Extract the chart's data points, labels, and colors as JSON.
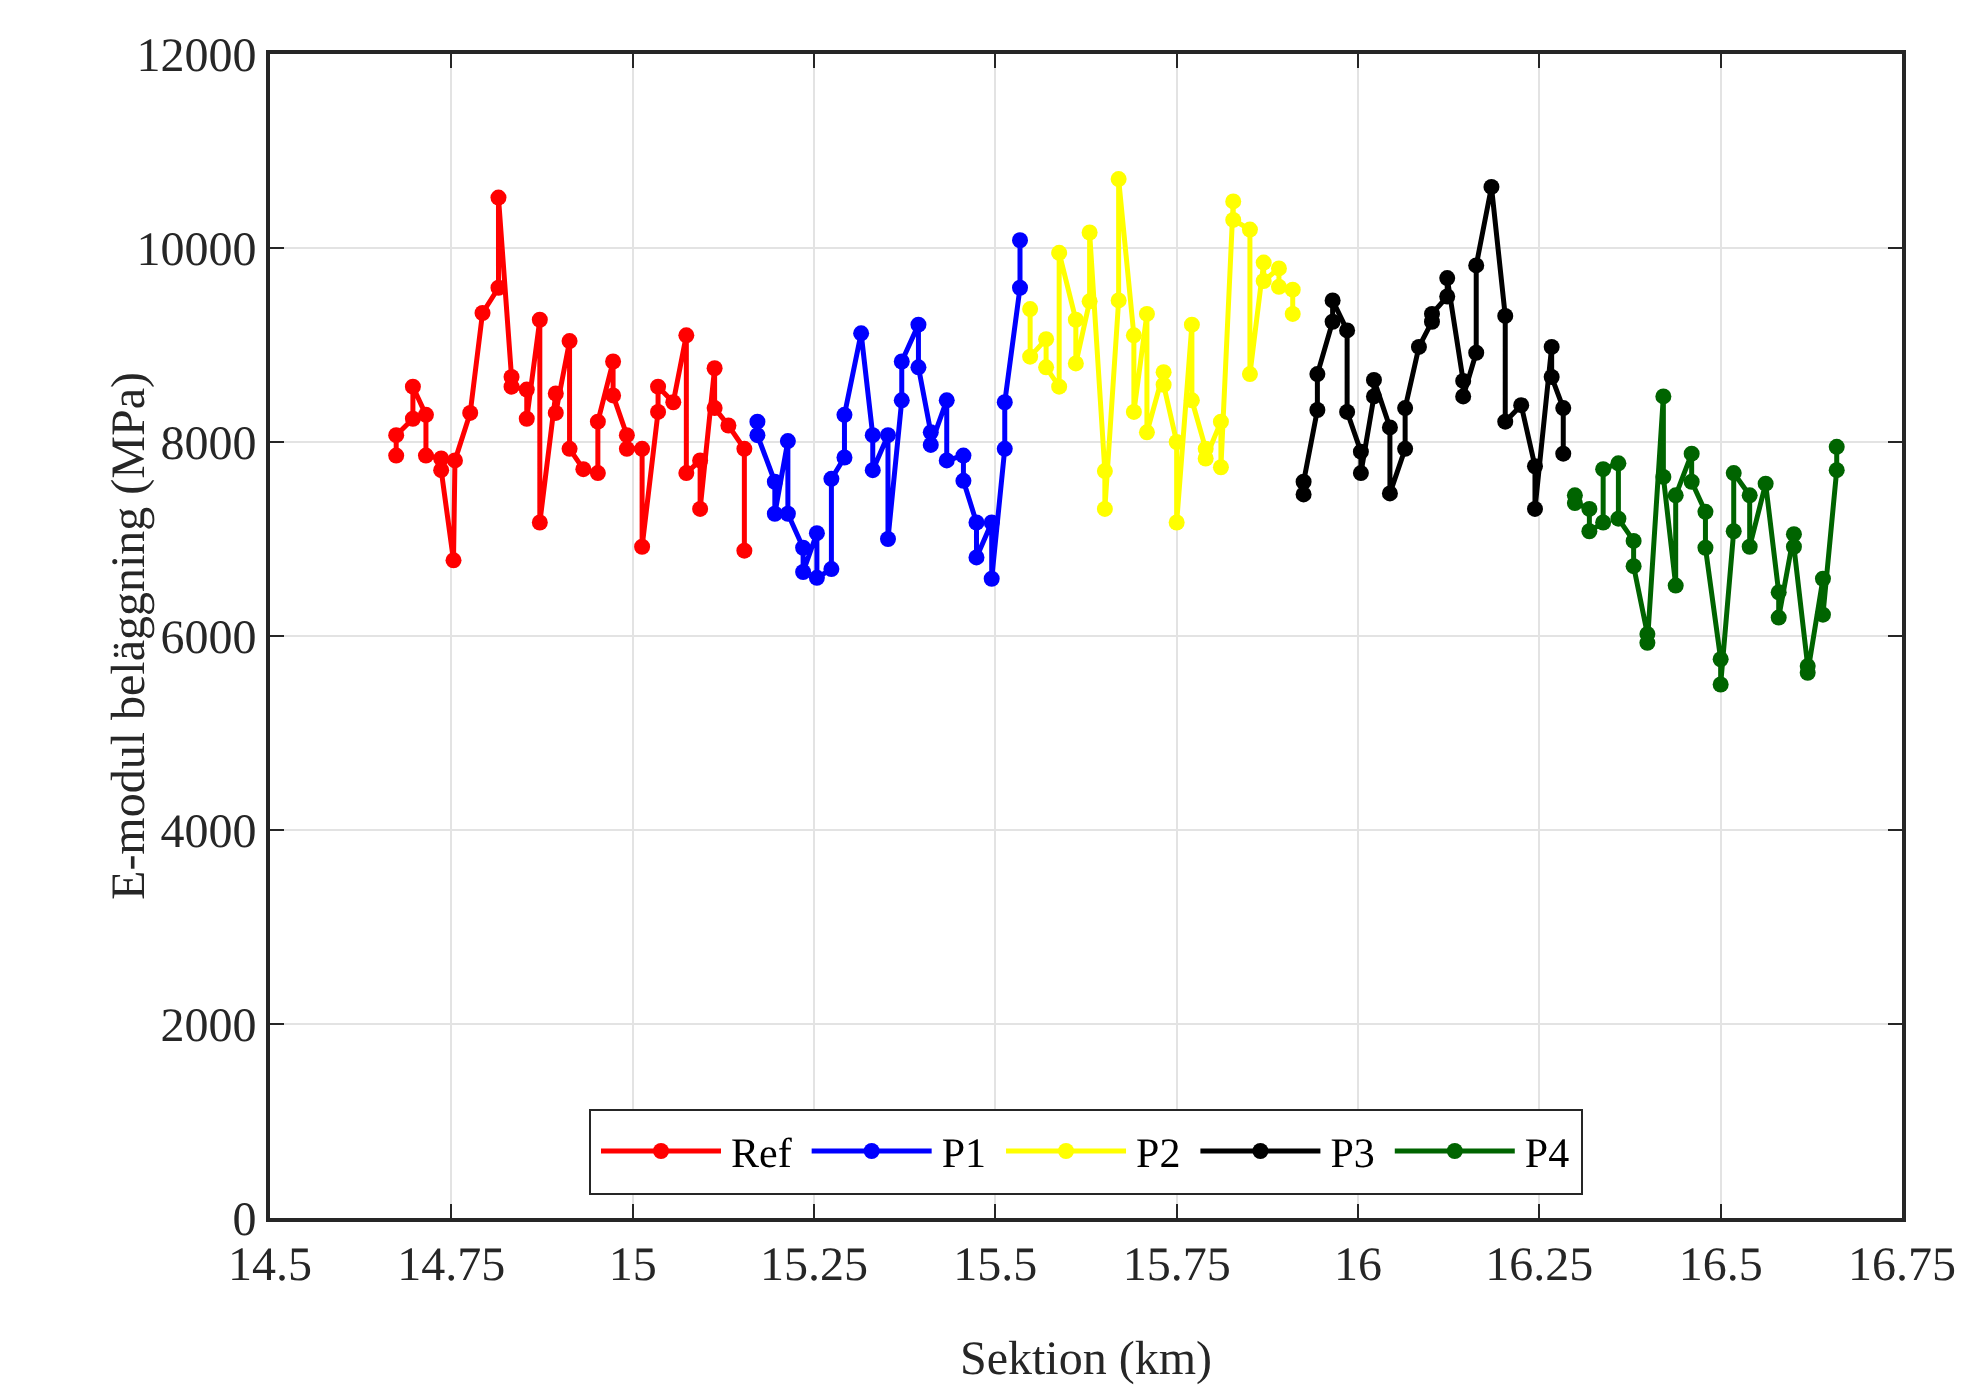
{
  "chart_data": {
    "type": "line",
    "xlabel": "Sektion (km)",
    "ylabel": "E-modul beläggning (MPa)",
    "xlim": [
      14.5,
      16.75
    ],
    "xticks": [
      14.5,
      14.75,
      15,
      15.25,
      15.5,
      15.75,
      16,
      16.25,
      16.5,
      16.75
    ],
    "ylim": [
      0,
      12000
    ],
    "yticks": [
      0,
      2000,
      4000,
      6000,
      8000,
      10000,
      12000
    ],
    "grid": true,
    "legend": "bottom",
    "marker": "circle",
    "line_style": "solid",
    "series": [
      {
        "name": "Ref",
        "color": "#ff0000",
        "x": [
          14.674,
          14.674,
          14.697,
          14.697,
          14.715,
          14.715,
          14.736,
          14.736,
          14.753,
          14.755,
          14.776,
          14.793,
          14.815,
          14.815,
          14.833,
          14.833,
          14.854,
          14.854,
          14.872,
          14.872,
          14.894,
          14.894,
          14.913,
          14.913,
          14.932,
          14.952,
          14.952,
          14.973,
          14.973,
          14.992,
          14.992,
          15.013,
          15.013,
          15.035,
          15.035,
          15.056,
          15.074,
          15.074,
          15.093,
          15.093,
          15.113,
          15.113,
          15.132,
          15.154,
          15.154
        ],
        "values": [
          7860,
          8070,
          8240,
          8570,
          8280,
          7860,
          7830,
          7710,
          6780,
          7810,
          8300,
          9330,
          9590,
          10520,
          8670,
          8570,
          8540,
          8240,
          9260,
          7170,
          8500,
          8300,
          9040,
          7930,
          7720,
          7680,
          8210,
          8830,
          8480,
          8070,
          7930,
          7930,
          6920,
          8310,
          8570,
          8410,
          9100,
          7680,
          7810,
          7310,
          8760,
          8350,
          8170,
          7930,
          6880
        ]
      },
      {
        "name": "P1",
        "color": "#0000ff",
        "x": [
          15.172,
          15.172,
          15.196,
          15.196,
          15.214,
          15.214,
          15.235,
          15.235,
          15.254,
          15.254,
          15.274,
          15.274,
          15.292,
          15.292,
          15.315,
          15.331,
          15.331,
          15.352,
          15.352,
          15.371,
          15.371,
          15.394,
          15.394,
          15.411,
          15.411,
          15.433,
          15.433,
          15.456,
          15.456,
          15.474,
          15.474,
          15.495,
          15.495,
          15.513,
          15.513,
          15.534,
          15.534
        ],
        "values": [
          8210,
          8070,
          7590,
          7260,
          8010,
          7260,
          6910,
          6660,
          7060,
          6600,
          6690,
          7620,
          7840,
          8280,
          9120,
          8070,
          7710,
          8070,
          7000,
          8430,
          8830,
          9210,
          8770,
          8100,
          7970,
          8430,
          7810,
          7860,
          7600,
          7170,
          6810,
          7170,
          6590,
          7930,
          8410,
          9590,
          10080
        ]
      },
      {
        "name": "P2",
        "color": "#ffff00",
        "x": [
          15.548,
          15.548,
          15.57,
          15.57,
          15.588,
          15.588,
          15.611,
          15.611,
          15.63,
          15.63,
          15.651,
          15.651,
          15.67,
          15.67,
          15.691,
          15.691,
          15.709,
          15.709,
          15.732,
          15.732,
          15.75,
          15.75,
          15.771,
          15.771,
          15.79,
          15.79,
          15.811,
          15.811,
          15.828,
          15.828,
          15.851,
          15.851,
          15.87,
          15.87,
          15.891,
          15.891,
          15.91,
          15.91
        ],
        "values": [
          9370,
          8880,
          9060,
          8770,
          8570,
          9950,
          9260,
          8810,
          9450,
          10160,
          7700,
          7310,
          9460,
          10710,
          9100,
          8310,
          9320,
          8100,
          8720,
          8590,
          8000,
          7170,
          9210,
          8430,
          7930,
          7830,
          8210,
          7740,
          10480,
          10290,
          10190,
          8700,
          9850,
          9660,
          9790,
          9600,
          9570,
          9320
        ]
      },
      {
        "name": "P3",
        "color": "#000000",
        "x": [
          15.925,
          15.925,
          15.944,
          15.944,
          15.965,
          15.965,
          15.985,
          15.985,
          16.004,
          16.004,
          16.022,
          16.022,
          16.044,
          16.044,
          16.065,
          16.065,
          16.084,
          16.102,
          16.102,
          16.123,
          16.123,
          16.145,
          16.145,
          16.163,
          16.163,
          16.184,
          16.203,
          16.203,
          16.225,
          16.244,
          16.244,
          16.267,
          16.267,
          16.283,
          16.283
        ],
        "values": [
          7460,
          7590,
          8330,
          8700,
          9240,
          9460,
          9150,
          8310,
          7900,
          7680,
          8470,
          8640,
          8150,
          7470,
          7930,
          8350,
          8980,
          9240,
          9320,
          9500,
          9690,
          8630,
          8470,
          8920,
          9820,
          10630,
          9300,
          8210,
          8380,
          7750,
          7310,
          8980,
          8670,
          8350,
          7880
        ]
      },
      {
        "name": "P4",
        "color": "#006400",
        "x": [
          16.299,
          16.299,
          16.319,
          16.319,
          16.338,
          16.338,
          16.359,
          16.359,
          16.38,
          16.38,
          16.399,
          16.399,
          16.421,
          16.421,
          16.438,
          16.438,
          16.46,
          16.46,
          16.479,
          16.479,
          16.5,
          16.5,
          16.518,
          16.518,
          16.54,
          16.54,
          16.562,
          16.58,
          16.58,
          16.601,
          16.601,
          16.62,
          16.62,
          16.641,
          16.641,
          16.66,
          16.66
        ],
        "values": [
          7450,
          7370,
          7310,
          7080,
          7170,
          7720,
          7780,
          7210,
          6980,
          6720,
          6020,
          5930,
          8470,
          7640,
          6520,
          7450,
          7880,
          7590,
          7280,
          6910,
          5760,
          5500,
          7080,
          7680,
          7450,
          6920,
          7570,
          6450,
          6190,
          7050,
          6920,
          5690,
          5620,
          6590,
          6220,
          7710,
          7950
        ]
      }
    ]
  }
}
